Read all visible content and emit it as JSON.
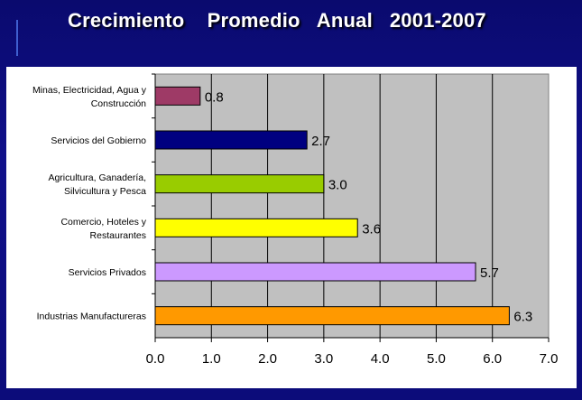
{
  "slide": {
    "title": "Crecimiento    Promedio   Anual   2001-2007"
  },
  "chart_data": {
    "type": "bar",
    "orientation": "horizontal",
    "categories": [
      [
        "Minas, Electricidad, Agua y",
        "Construcción"
      ],
      [
        "Servicios del Gobierno"
      ],
      [
        "Agricultura, Ganadería,",
        "Silvicultura y Pesca"
      ],
      [
        "Comercio, Hoteles y",
        "Restaurantes"
      ],
      [
        "Servicios Privados"
      ],
      [
        "Industrias Manufactureras"
      ]
    ],
    "values": [
      0.8,
      2.7,
      3.0,
      3.6,
      5.7,
      6.3
    ],
    "value_labels": [
      "0.8",
      "2.7",
      "3.0",
      "3.6",
      "5.7",
      "6.3"
    ],
    "bar_colors": [
      "#9e3a66",
      "#000080",
      "#99cc00",
      "#ffff00",
      "#cc99ff",
      "#ff9900"
    ],
    "xlim": [
      0,
      7
    ],
    "x_ticks": [
      "0.0",
      "1.0",
      "2.0",
      "3.0",
      "4.0",
      "5.0",
      "6.0",
      "7.0"
    ],
    "grid": true,
    "plot_background": "#c0c0c0",
    "title": "",
    "xlabel": "",
    "ylabel": ""
  }
}
